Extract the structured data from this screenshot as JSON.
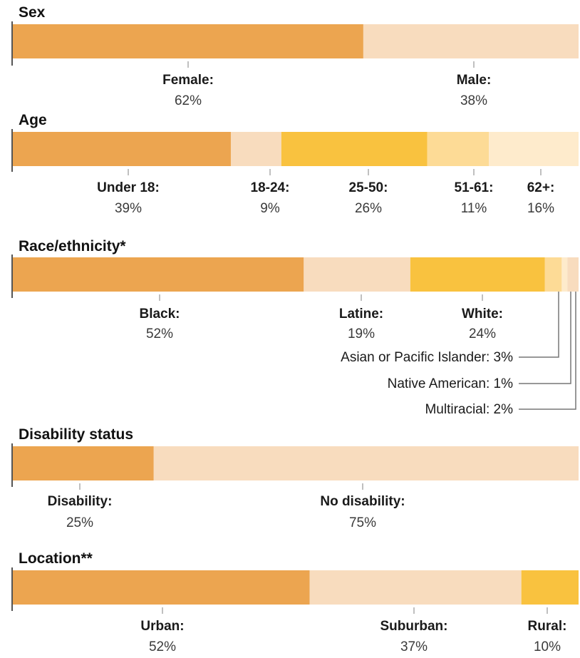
{
  "colors": {
    "dark": "#ECA550",
    "pale": "#F8DCBE",
    "gold": "#F9C23F",
    "light_gold": "#FDDB96",
    "cream": "#FEEBCC",
    "axis": "#555555",
    "tick": "#aaaaaa",
    "leader": "#777777"
  },
  "chart_data": [
    {
      "type": "bar",
      "title": "Sex",
      "stacked": true,
      "categories": [
        "Female:",
        "Male:"
      ],
      "values": [
        62,
        38
      ],
      "value_labels": [
        "62%",
        "38%"
      ],
      "colors": [
        "dark",
        "pale"
      ]
    },
    {
      "type": "bar",
      "title": "Age",
      "stacked": true,
      "categories": [
        "Under 18:",
        "18-24:",
        "25-50:",
        "51-61:",
        "62+:"
      ],
      "values": [
        39,
        9,
        26,
        11,
        16
      ],
      "value_labels": [
        "39%",
        "9%",
        "26%",
        "11%",
        "16%"
      ],
      "colors": [
        "dark",
        "pale",
        "gold",
        "light_gold",
        "cream"
      ]
    },
    {
      "type": "bar",
      "title": "Race/ethnicity*",
      "stacked": true,
      "categories": [
        "Black:",
        "Latine:",
        "White:",
        "Asian or Pacific Islander: 3%",
        "Native American: 1%",
        "Multiracial: 2%"
      ],
      "values": [
        52,
        19,
        24,
        3,
        1,
        2
      ],
      "value_labels": [
        "52%",
        "19%",
        "24%",
        "",
        "",
        ""
      ],
      "colors": [
        "dark",
        "pale",
        "gold",
        "light_gold",
        "cream",
        "pale"
      ]
    },
    {
      "type": "bar",
      "title": "Disability status",
      "stacked": true,
      "categories": [
        "Disability:",
        "No disability:"
      ],
      "values": [
        25,
        75
      ],
      "value_labels": [
        "25%",
        "75%"
      ],
      "colors": [
        "dark",
        "pale"
      ]
    },
    {
      "type": "bar",
      "title": "Location**",
      "stacked": true,
      "categories": [
        "Urban:",
        "Suburban:",
        "Rural:"
      ],
      "values": [
        52,
        37,
        10
      ],
      "value_labels": [
        "52%",
        "37%",
        "10%"
      ],
      "colors": [
        "dark",
        "pale",
        "gold"
      ]
    }
  ]
}
